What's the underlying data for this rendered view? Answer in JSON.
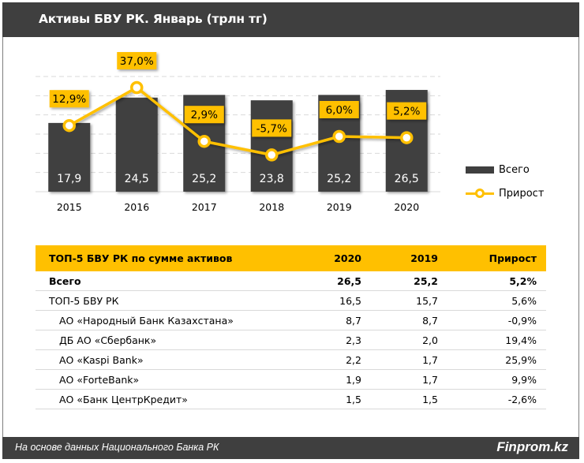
{
  "header": {
    "title": "Активы БВУ РК. Январь (трлн тг)"
  },
  "colors": {
    "bar": "#3f3f3f",
    "line": "#ffc000",
    "header_bg": "#3f3f3f",
    "table_header_bg": "#ffc000",
    "grid": "#d9d9d9"
  },
  "chart_data": {
    "type": "bar",
    "title": "Активы БВУ РК. Январь (трлн тг)",
    "categories": [
      "2015",
      "2016",
      "2017",
      "2018",
      "2019",
      "2020"
    ],
    "series": [
      {
        "name": "Всего",
        "type": "bar",
        "values": [
          17.9,
          24.5,
          25.2,
          23.8,
          25.2,
          26.5
        ],
        "labels": [
          "17,9",
          "24,5",
          "25,2",
          "23,8",
          "25,2",
          "26,5"
        ]
      },
      {
        "name": "Прирост",
        "type": "line",
        "values": [
          12.9,
          37.0,
          2.9,
          -5.7,
          6.0,
          5.2
        ],
        "labels": [
          "12,9%",
          "37,0%",
          "2,9%",
          "-5,7%",
          "6,0%",
          "5,2%"
        ]
      }
    ],
    "ylim": [
      0,
      30
    ],
    "grid": true,
    "legend": "right",
    "xlabel": "",
    "ylabel": ""
  },
  "legend": {
    "items": [
      {
        "label": "Всего"
      },
      {
        "label": "Прирост"
      }
    ]
  },
  "table": {
    "headers": [
      "ТОП-5 БВУ РК по сумме активов",
      "2020",
      "2019",
      "Прирост"
    ],
    "rows": [
      {
        "name": "Всего",
        "v2020": "26,5",
        "v2019": "25,2",
        "growth": "5,2%",
        "bold": true,
        "indent": false
      },
      {
        "name": "ТОП-5 БВУ РК",
        "v2020": "16,5",
        "v2019": "15,7",
        "growth": "5,6%",
        "bold": false,
        "indent": false
      },
      {
        "name": "АО «Народный Банк Казахстана»",
        "v2020": "8,7",
        "v2019": "8,7",
        "growth": "-0,9%",
        "bold": false,
        "indent": true
      },
      {
        "name": "ДБ АО «Сбербанк»",
        "v2020": "2,3",
        "v2019": "2,0",
        "growth": "19,4%",
        "bold": false,
        "indent": true
      },
      {
        "name": "АО «Kaspi Bank»",
        "v2020": "2,2",
        "v2019": "1,7",
        "growth": "25,9%",
        "bold": false,
        "indent": true
      },
      {
        "name": "АО «ForteBank»",
        "v2020": "1,9",
        "v2019": "1,7",
        "growth": "9,9%",
        "bold": false,
        "indent": true
      },
      {
        "name": "АО «Банк ЦентрКредит»",
        "v2020": "1,5",
        "v2019": "1,5",
        "growth": "-2,6%",
        "bold": false,
        "indent": true
      }
    ]
  },
  "footer": {
    "source": "На основе данных  Национального  Банка РК",
    "brand": "Finprom.kz"
  }
}
